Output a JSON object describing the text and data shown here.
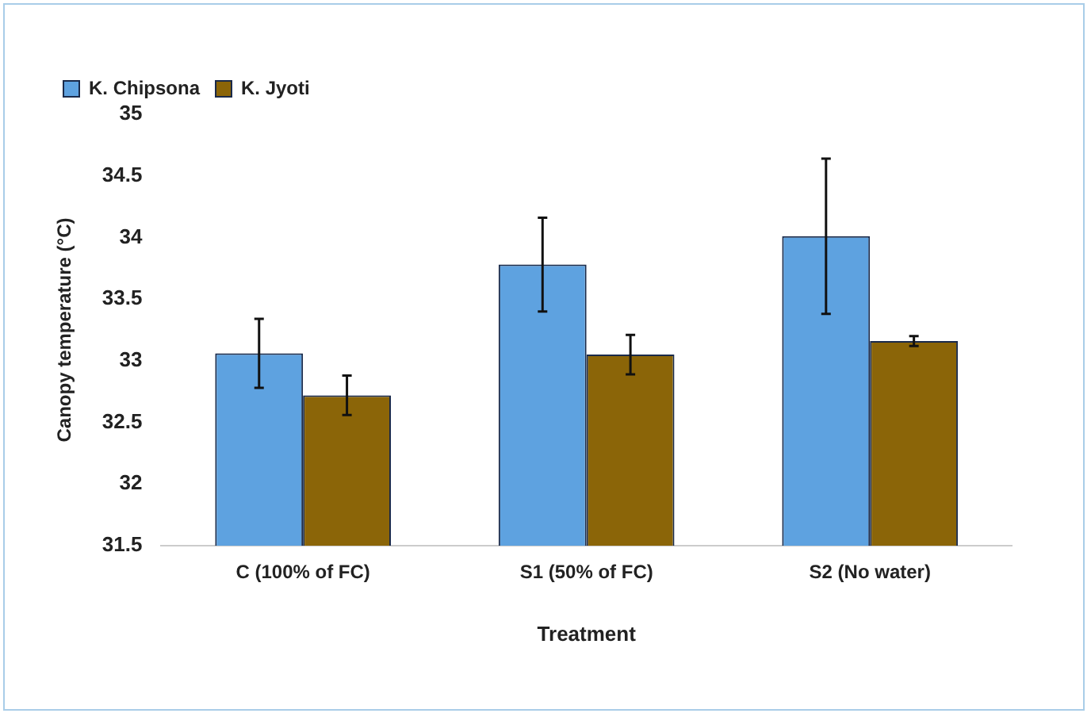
{
  "chart_data": {
    "type": "bar",
    "xlabel": "Treatment",
    "ylabel": "Canopy temperature (°C)",
    "categories": [
      "C (100% of FC)",
      "S1 (50% of FC)",
      "S2 (No water)"
    ],
    "series": [
      {
        "name": "K. Chipsona",
        "color": "#5ea2e0",
        "values": [
          33.06,
          33.78,
          34.01
        ],
        "errors": [
          0.28,
          0.38,
          0.63
        ]
      },
      {
        "name": "K. Jyoti",
        "color": "#8b6508",
        "values": [
          32.72,
          33.05,
          33.16
        ],
        "errors": [
          0.16,
          0.16,
          0.04
        ]
      }
    ],
    "ylim": [
      31.5,
      35
    ],
    "yticks": [
      31.5,
      32,
      32.5,
      33,
      33.5,
      34,
      34.5,
      35
    ],
    "grid": false,
    "legend": "top left"
  }
}
